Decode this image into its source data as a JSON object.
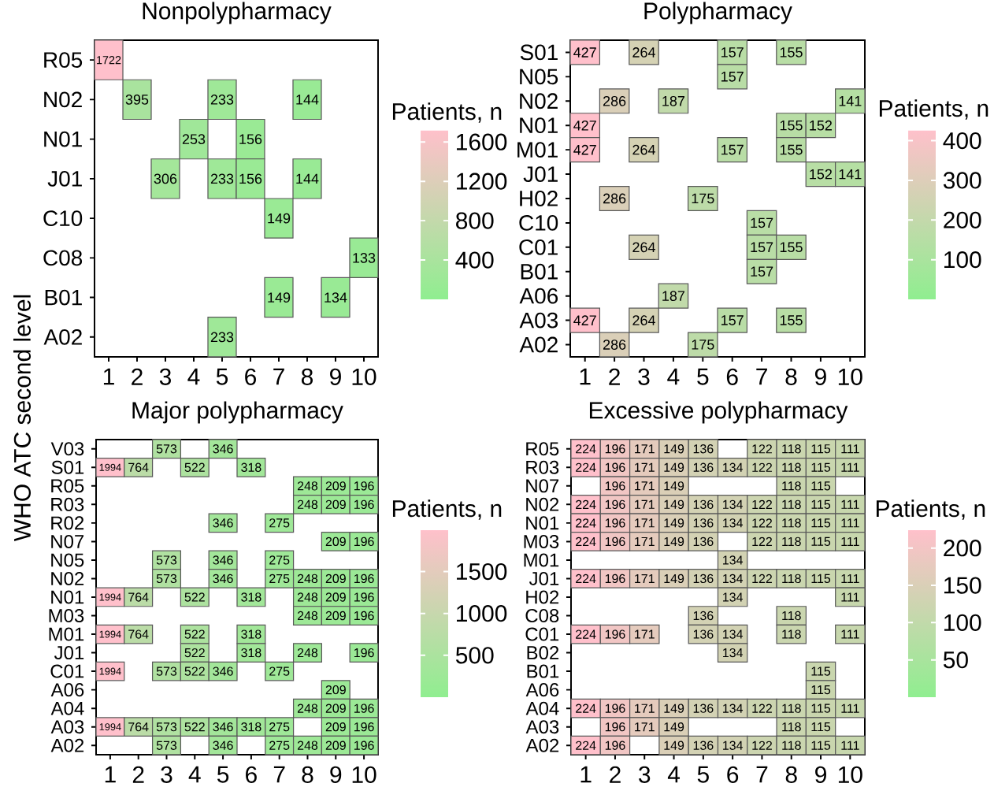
{
  "chart_data": [
    {
      "type": "heatmap",
      "title": "Nonpolypharmacy",
      "ylabel": "WHO ATC second level",
      "clabel": "Patients, n",
      "data_labels": true,
      "categories": [
        "1",
        "2",
        "3",
        "4",
        "5",
        "6",
        "7",
        "8",
        "9",
        "10"
      ],
      "y_categories": [
        "R05",
        "N02",
        "N01",
        "J01",
        "C10",
        "C08",
        "B01",
        "A02"
      ],
      "cells": [
        [
          1722,
          null,
          null,
          null,
          null,
          null,
          null,
          null,
          null,
          null
        ],
        [
          null,
          395,
          null,
          null,
          233,
          null,
          null,
          144,
          null,
          null
        ],
        [
          null,
          null,
          null,
          253,
          null,
          156,
          null,
          null,
          null,
          null
        ],
        [
          null,
          null,
          306,
          null,
          233,
          156,
          null,
          144,
          null,
          null
        ],
        [
          null,
          null,
          null,
          null,
          null,
          null,
          149,
          null,
          null,
          null
        ],
        [
          null,
          null,
          null,
          null,
          null,
          null,
          null,
          null,
          null,
          133
        ],
        [
          null,
          null,
          null,
          null,
          null,
          null,
          149,
          null,
          134,
          null
        ],
        [
          null,
          null,
          null,
          null,
          233,
          null,
          null,
          null,
          null,
          null
        ]
      ],
      "clim": [
        0,
        1722
      ],
      "cticks": [
        400,
        800,
        1200,
        1600
      ]
    },
    {
      "type": "heatmap",
      "title": "Polypharmacy",
      "clabel": "Patients, n",
      "data_labels": true,
      "categories": [
        "1",
        "2",
        "3",
        "4",
        "5",
        "6",
        "7",
        "8",
        "9",
        "10"
      ],
      "y_categories": [
        "S01",
        "N05",
        "N02",
        "N01",
        "M01",
        "J01",
        "H02",
        "C10",
        "C01",
        "B01",
        "A06",
        "A03",
        "A02"
      ],
      "cells": [
        [
          427,
          null,
          264,
          null,
          null,
          157,
          null,
          155,
          null,
          null
        ],
        [
          null,
          null,
          null,
          null,
          null,
          157,
          null,
          null,
          null,
          null
        ],
        [
          null,
          286,
          null,
          187,
          null,
          null,
          null,
          null,
          null,
          141
        ],
        [
          427,
          null,
          null,
          null,
          null,
          null,
          null,
          155,
          152,
          null
        ],
        [
          427,
          null,
          264,
          null,
          null,
          157,
          null,
          155,
          null,
          null
        ],
        [
          null,
          null,
          null,
          null,
          null,
          null,
          null,
          null,
          152,
          141
        ],
        [
          null,
          286,
          null,
          null,
          175,
          null,
          null,
          null,
          null,
          null
        ],
        [
          null,
          null,
          null,
          null,
          null,
          null,
          157,
          null,
          null,
          null
        ],
        [
          null,
          null,
          264,
          null,
          null,
          null,
          157,
          155,
          null,
          null
        ],
        [
          null,
          null,
          null,
          null,
          null,
          null,
          157,
          null,
          null,
          null
        ],
        [
          null,
          null,
          null,
          187,
          null,
          null,
          null,
          null,
          null,
          null
        ],
        [
          427,
          null,
          264,
          null,
          null,
          157,
          null,
          155,
          null,
          null
        ],
        [
          null,
          286,
          null,
          null,
          175,
          null,
          null,
          null,
          null,
          null
        ]
      ],
      "clim": [
        0,
        427
      ],
      "cticks": [
        100,
        200,
        300,
        400
      ]
    },
    {
      "type": "heatmap",
      "title": "Major polypharmacy",
      "clabel": "Patients, n",
      "data_labels": true,
      "categories": [
        "1",
        "2",
        "3",
        "4",
        "5",
        "6",
        "7",
        "8",
        "9",
        "10"
      ],
      "y_categories": [
        "V03",
        "S01",
        "R05",
        "R03",
        "R02",
        "N07",
        "N05",
        "N02",
        "N01",
        "M03",
        "M01",
        "J01",
        "C01",
        "A06",
        "A04",
        "A03",
        "A02"
      ],
      "cells": [
        [
          null,
          null,
          573,
          null,
          346,
          null,
          null,
          null,
          null,
          null
        ],
        [
          1994,
          764,
          null,
          522,
          null,
          318,
          null,
          null,
          null,
          null
        ],
        [
          null,
          null,
          null,
          null,
          null,
          null,
          null,
          248,
          209,
          196
        ],
        [
          null,
          null,
          null,
          null,
          null,
          null,
          null,
          248,
          209,
          196
        ],
        [
          null,
          null,
          null,
          null,
          346,
          null,
          275,
          null,
          null,
          null
        ],
        [
          null,
          null,
          null,
          null,
          null,
          null,
          null,
          null,
          209,
          196
        ],
        [
          null,
          null,
          573,
          null,
          346,
          null,
          275,
          null,
          null,
          null
        ],
        [
          null,
          null,
          573,
          null,
          346,
          null,
          275,
          248,
          209,
          196
        ],
        [
          1994,
          764,
          null,
          522,
          null,
          318,
          null,
          248,
          209,
          196
        ],
        [
          null,
          null,
          null,
          null,
          null,
          null,
          null,
          248,
          209,
          196
        ],
        [
          1994,
          764,
          null,
          522,
          null,
          318,
          null,
          null,
          null,
          null
        ],
        [
          null,
          null,
          null,
          522,
          null,
          318,
          null,
          248,
          null,
          196
        ],
        [
          1994,
          null,
          573,
          522,
          346,
          null,
          275,
          null,
          null,
          null
        ],
        [
          null,
          null,
          null,
          null,
          null,
          null,
          null,
          null,
          209,
          null
        ],
        [
          null,
          null,
          null,
          null,
          null,
          null,
          null,
          248,
          209,
          196
        ],
        [
          1994,
          764,
          573,
          522,
          346,
          318,
          275,
          null,
          209,
          196
        ],
        [
          null,
          null,
          573,
          null,
          346,
          null,
          275,
          248,
          209,
          196
        ]
      ],
      "clim": [
        0,
        1994
      ],
      "cticks": [
        500,
        1000,
        1500
      ]
    },
    {
      "type": "heatmap",
      "title": "Excessive polypharmacy",
      "clabel": "Patients, n",
      "data_labels": true,
      "categories": [
        "1",
        "2",
        "3",
        "4",
        "5",
        "6",
        "7",
        "8",
        "9",
        "10"
      ],
      "y_categories": [
        "R05",
        "R03",
        "N07",
        "N02",
        "N01",
        "M03",
        "M01",
        "J01",
        "H02",
        "C08",
        "C01",
        "B02",
        "B01",
        "A06",
        "A04",
        "A03",
        "A02"
      ],
      "cells": [
        [
          224,
          196,
          171,
          149,
          136,
          null,
          122,
          118,
          115,
          111
        ],
        [
          224,
          196,
          171,
          149,
          136,
          134,
          122,
          118,
          115,
          111
        ],
        [
          null,
          196,
          171,
          149,
          null,
          null,
          null,
          118,
          115,
          null
        ],
        [
          224,
          196,
          171,
          149,
          136,
          134,
          122,
          118,
          115,
          111
        ],
        [
          224,
          196,
          171,
          149,
          136,
          134,
          122,
          118,
          115,
          111
        ],
        [
          224,
          196,
          171,
          149,
          136,
          null,
          122,
          118,
          115,
          111
        ],
        [
          null,
          null,
          null,
          null,
          null,
          134,
          null,
          null,
          null,
          null
        ],
        [
          224,
          196,
          171,
          149,
          136,
          134,
          122,
          118,
          115,
          111
        ],
        [
          null,
          null,
          null,
          null,
          null,
          134,
          null,
          null,
          null,
          111
        ],
        [
          null,
          null,
          null,
          null,
          136,
          null,
          null,
          118,
          null,
          null
        ],
        [
          224,
          196,
          171,
          null,
          136,
          134,
          null,
          118,
          null,
          111
        ],
        [
          null,
          null,
          null,
          null,
          null,
          134,
          null,
          null,
          null,
          null
        ],
        [
          null,
          null,
          null,
          null,
          null,
          null,
          null,
          null,
          115,
          null
        ],
        [
          null,
          null,
          null,
          null,
          null,
          null,
          null,
          null,
          115,
          null
        ],
        [
          224,
          196,
          171,
          149,
          136,
          134,
          122,
          118,
          115,
          111
        ],
        [
          null,
          196,
          171,
          149,
          null,
          null,
          null,
          118,
          115,
          null
        ],
        [
          224,
          196,
          null,
          149,
          136,
          134,
          122,
          118,
          115,
          111
        ]
      ],
      "clim": [
        0,
        224
      ],
      "cticks": [
        50,
        100,
        150,
        200
      ]
    }
  ]
}
